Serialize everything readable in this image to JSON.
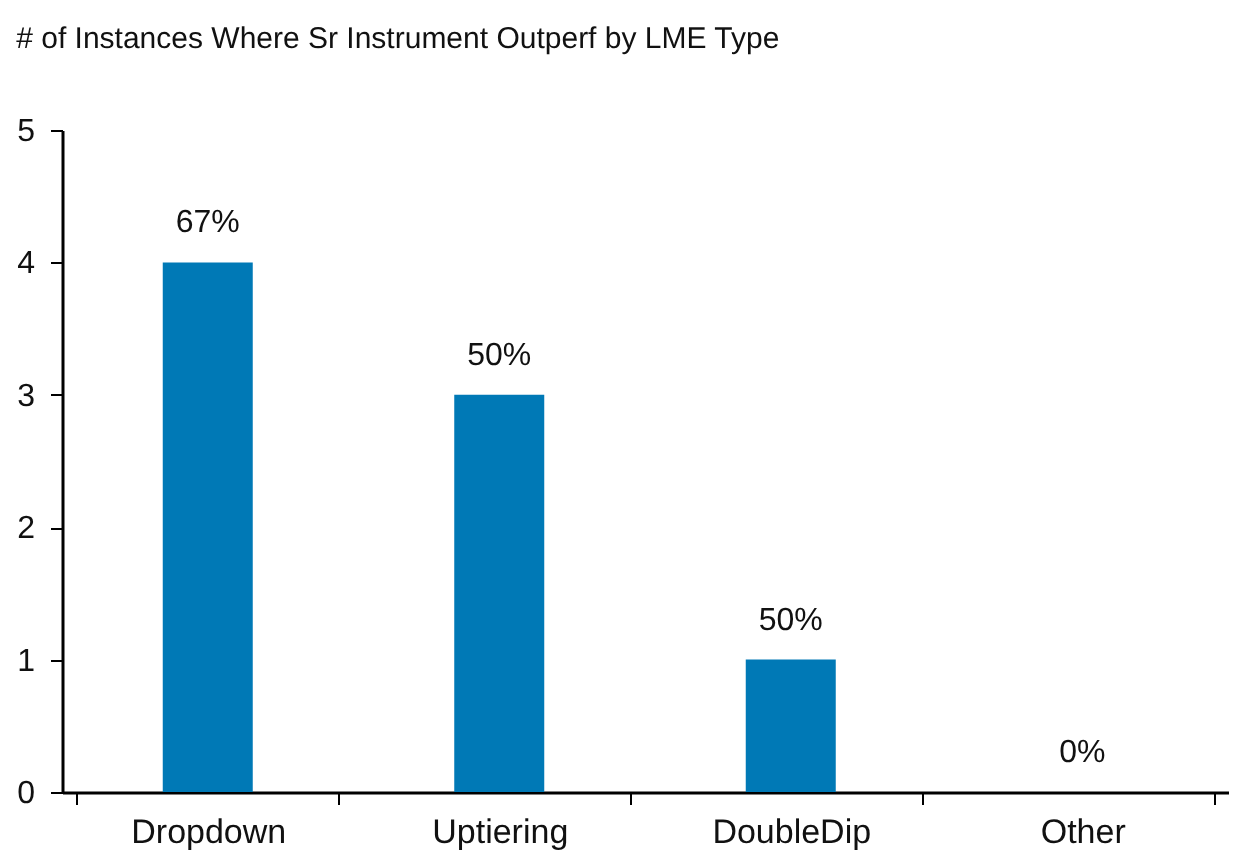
{
  "chart_data": {
    "type": "bar",
    "title": "# of Instances Where Sr Instrument Outperf by LME Type",
    "categories": [
      "Dropdown",
      "Uptiering",
      "DoubleDip",
      "Other"
    ],
    "values": [
      4,
      3,
      1,
      0
    ],
    "annotations": [
      {
        "text": "67%",
        "x": "Dropdown",
        "y": 4
      },
      {
        "text": "50%",
        "x": "Uptiering",
        "y": 3
      },
      {
        "text": "50%",
        "x": "DoubleDip",
        "y": 1
      },
      {
        "text": "0%",
        "x": "Other",
        "y": 0
      }
    ],
    "color": "#0079b6",
    "ylim": [
      0,
      5
    ],
    "yticks": [
      0,
      1,
      2,
      3,
      4,
      5
    ],
    "grid": false
  }
}
